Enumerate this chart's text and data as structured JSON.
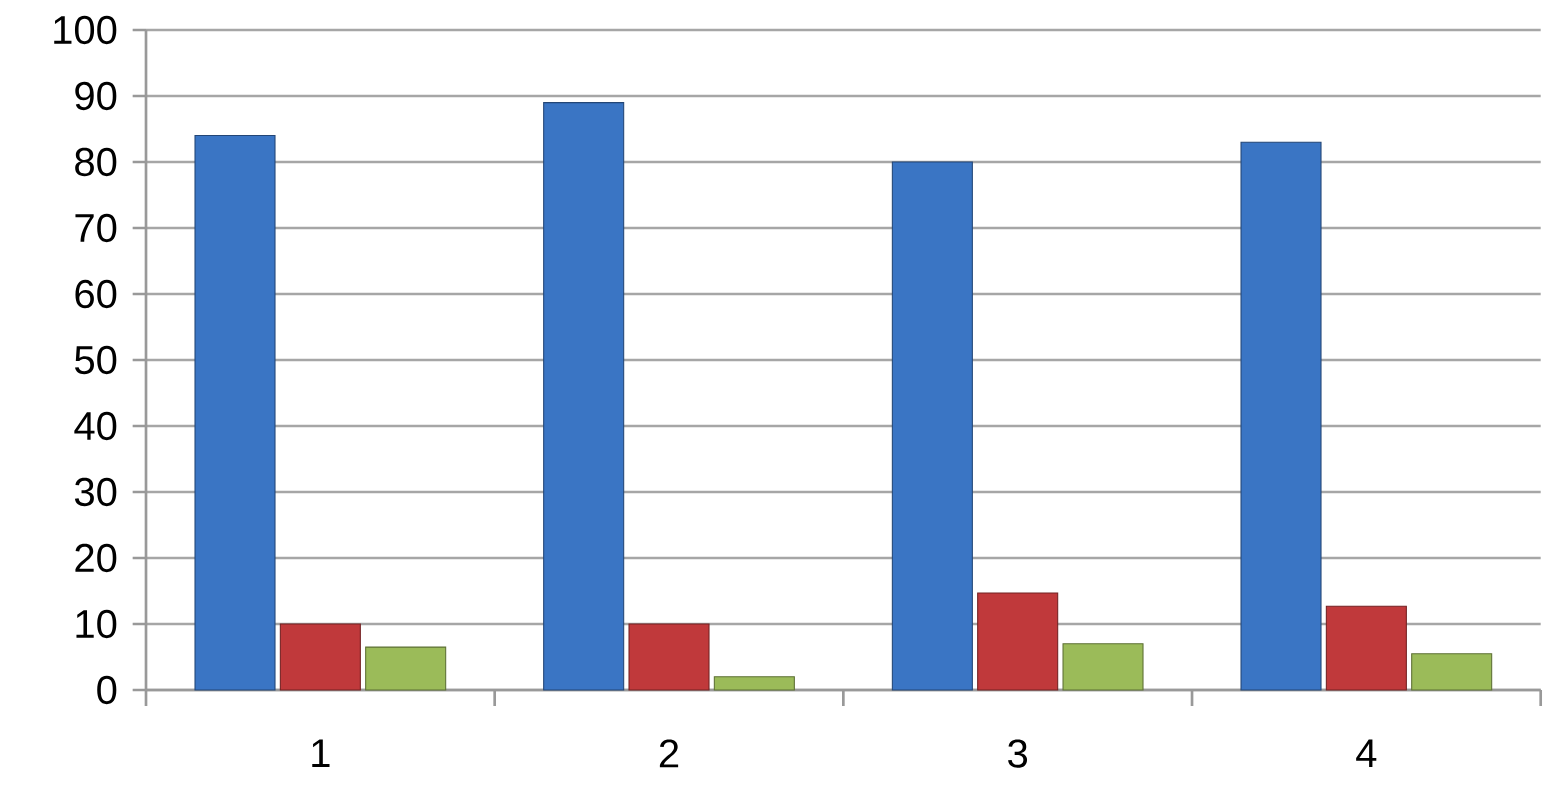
{
  "chart_data": {
    "type": "bar",
    "categories": [
      "1",
      "2",
      "3",
      "4"
    ],
    "series": [
      {
        "color": "#3a75c4",
        "values": [
          84,
          89,
          80,
          83
        ]
      },
      {
        "color": "#c0393b",
        "values": [
          10,
          10,
          14.7,
          12.7
        ]
      },
      {
        "color": "#9bbb59",
        "values": [
          6.5,
          2,
          7,
          5.5
        ]
      }
    ],
    "ylim": [
      0,
      100
    ],
    "yticks": [
      0,
      10,
      20,
      30,
      40,
      50,
      60,
      70,
      80,
      90,
      100
    ],
    "grid": "y"
  }
}
